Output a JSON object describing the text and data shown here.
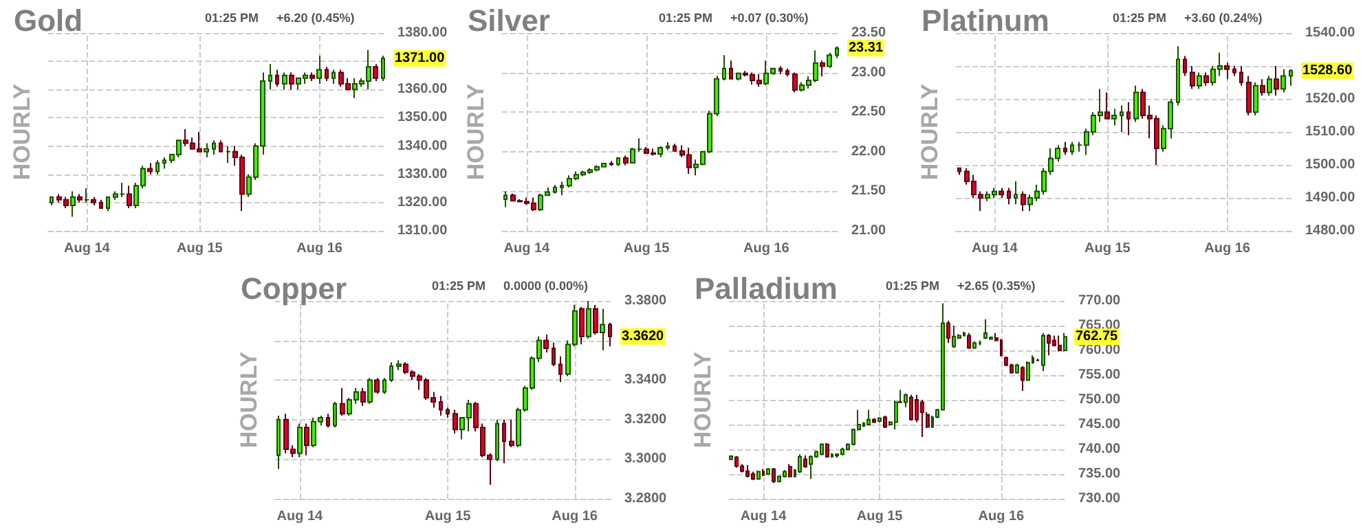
{
  "chart_data": [
    {
      "type": "candlestick",
      "title": "Gold",
      "ylabel": "HOURLY",
      "grid": true,
      "annotations": [
        "01:25 PM",
        "+6.20 (0.45%)",
        "1371.00"
      ],
      "categories": [
        null,
        null,
        null,
        null,
        null,
        "Aug 14",
        null,
        null,
        null,
        null,
        null,
        null,
        null,
        null,
        null,
        null,
        null,
        null,
        null,
        null,
        null,
        "Aug 15",
        null,
        null,
        null,
        null,
        null,
        null,
        null,
        null,
        null,
        null,
        null,
        null,
        null,
        null,
        null,
        null,
        "Aug 16",
        null,
        null,
        null,
        null,
        null,
        null,
        null,
        null,
        null
      ],
      "ylim": [
        1310,
        1380
      ],
      "yticks": [
        {
          "value": 1310,
          "label": "1310.00"
        },
        {
          "value": 1320,
          "label": "1320.00"
        },
        {
          "value": 1330,
          "label": "1330.00"
        },
        {
          "value": 1340,
          "label": "1340.00"
        },
        {
          "value": 1350,
          "label": "1350.00"
        },
        {
          "value": 1360,
          "label": "1360.00"
        },
        {
          "value": 1370,
          "label": null
        },
        {
          "value": 1380,
          "label": "1380.00"
        }
      ],
      "ohlc": [
        [
          1320,
          1322,
          1319,
          1322
        ],
        [
          1322,
          1323,
          1320,
          1321
        ],
        [
          1321,
          1322,
          1318,
          1319
        ],
        [
          1319,
          1324,
          1315,
          1322
        ],
        [
          1322,
          1323,
          1320,
          1321
        ],
        [
          1321,
          1325,
          1320,
          1321
        ],
        [
          1321,
          1322,
          1319,
          1320
        ],
        [
          1320,
          1321,
          1318,
          1318
        ],
        [
          1318,
          1322,
          1317,
          1322
        ],
        [
          1322,
          1324,
          1321,
          1323
        ],
        [
          1323,
          1327,
          1322,
          1323
        ],
        [
          1323,
          1326,
          1318,
          1319
        ],
        [
          1319,
          1327,
          1318,
          1326
        ],
        [
          1326,
          1333,
          1325,
          1332
        ],
        [
          1332,
          1334,
          1330,
          1331
        ],
        [
          1331,
          1335,
          1330,
          1334
        ],
        [
          1334,
          1336,
          1332,
          1335
        ],
        [
          1335,
          1337,
          1334,
          1337
        ],
        [
          1337,
          1342,
          1336,
          1342
        ],
        [
          1342,
          1346,
          1340,
          1341
        ],
        [
          1341,
          1343,
          1339,
          1339
        ],
        [
          1339,
          1345,
          1338,
          1338
        ],
        [
          1338,
          1341,
          1336,
          1339
        ],
        [
          1339,
          1342,
          1337,
          1341
        ],
        [
          1341,
          1342,
          1338,
          1338
        ],
        [
          1338,
          1340,
          1334,
          1338
        ],
        [
          1338,
          1340,
          1333,
          1336
        ],
        [
          1336,
          1337,
          1317,
          1323
        ],
        [
          1323,
          1330,
          1322,
          1329
        ],
        [
          1329,
          1341,
          1328,
          1340
        ],
        [
          1340,
          1366,
          1337,
          1363
        ],
        [
          1363,
          1369,
          1360,
          1365
        ],
        [
          1365,
          1367,
          1361,
          1362
        ],
        [
          1362,
          1366,
          1360,
          1365
        ],
        [
          1365,
          1366,
          1360,
          1362
        ],
        [
          1362,
          1364,
          1360,
          1364
        ],
        [
          1364,
          1366,
          1362,
          1365
        ],
        [
          1365,
          1366,
          1363,
          1364
        ],
        [
          1364,
          1372,
          1362,
          1367
        ],
        [
          1367,
          1368,
          1363,
          1364
        ],
        [
          1364,
          1367,
          1362,
          1366
        ],
        [
          1366,
          1367,
          1361,
          1362
        ],
        [
          1362,
          1364,
          1360,
          1360
        ],
        [
          1360,
          1364,
          1357,
          1362
        ],
        [
          1362,
          1364,
          1361,
          1363
        ],
        [
          1363,
          1374,
          1360,
          1368
        ],
        [
          1368,
          1369,
          1363,
          1364
        ],
        [
          1364,
          1372,
          1363,
          1371
        ]
      ]
    },
    {
      "type": "candlestick",
      "title": "Silver",
      "ylabel": "HOURLY",
      "grid": true,
      "annotations": [
        "01:25 PM",
        "+0.07 (0.30%)",
        "23.31"
      ],
      "categories": [
        null,
        null,
        null,
        "Aug 14",
        null,
        null,
        null,
        null,
        null,
        null,
        null,
        null,
        null,
        null,
        null,
        null,
        null,
        null,
        null,
        null,
        "Aug 15",
        null,
        null,
        null,
        null,
        null,
        null,
        null,
        null,
        null,
        null,
        null,
        null,
        null,
        null,
        null,
        null,
        "Aug 16",
        null,
        null,
        null,
        null,
        null,
        null,
        null,
        null,
        null,
        null
      ],
      "ylim": [
        21,
        23.5
      ],
      "yticks": [
        {
          "value": 21,
          "label": "21.00"
        },
        {
          "value": 21.5,
          "label": "21.50"
        },
        {
          "value": 22,
          "label": "22.00"
        },
        {
          "value": 22.5,
          "label": "22.50"
        },
        {
          "value": 23,
          "label": "23.00"
        },
        {
          "value": 23.5,
          "label": "23.50"
        }
      ],
      "ohlc": [
        [
          21.4,
          21.5,
          21.3,
          21.45
        ],
        [
          21.45,
          21.47,
          21.38,
          21.38
        ],
        [
          21.38,
          21.4,
          21.36,
          21.37
        ],
        [
          21.37,
          21.42,
          21.33,
          21.35
        ],
        [
          21.35,
          21.42,
          21.25,
          21.27
        ],
        [
          21.27,
          21.47,
          21.25,
          21.45
        ],
        [
          21.45,
          21.55,
          21.44,
          21.49
        ],
        [
          21.49,
          21.58,
          21.47,
          21.55
        ],
        [
          21.55,
          21.62,
          21.45,
          21.57
        ],
        [
          21.57,
          21.7,
          21.55,
          21.66
        ],
        [
          21.66,
          21.75,
          21.64,
          21.71
        ],
        [
          21.71,
          21.76,
          21.69,
          21.74
        ],
        [
          21.74,
          21.79,
          21.72,
          21.77
        ],
        [
          21.77,
          21.83,
          21.75,
          21.81
        ],
        [
          21.81,
          21.86,
          21.8,
          21.85
        ],
        [
          21.85,
          21.88,
          21.82,
          21.84
        ],
        [
          21.84,
          21.92,
          21.82,
          21.92
        ],
        [
          21.92,
          21.95,
          21.83,
          21.86
        ],
        [
          21.86,
          22.05,
          21.85,
          22.03
        ],
        [
          22.03,
          22.17,
          22.0,
          22.03
        ],
        [
          22.03,
          22.06,
          21.97,
          21.98
        ],
        [
          21.98,
          22.04,
          21.95,
          21.97
        ],
        [
          21.97,
          22.07,
          21.93,
          22.05
        ],
        [
          22.05,
          22.12,
          22.02,
          22.07
        ],
        [
          22.07,
          22.1,
          22.0,
          22.01
        ],
        [
          22.01,
          22.08,
          21.93,
          21.96
        ],
        [
          21.96,
          22.05,
          21.72,
          21.8
        ],
        [
          21.8,
          21.9,
          21.7,
          21.84
        ],
        [
          21.84,
          22.01,
          21.83,
          22.0
        ],
        [
          22.0,
          22.52,
          21.98,
          22.48
        ],
        [
          22.48,
          22.96,
          22.45,
          22.92
        ],
        [
          22.92,
          23.22,
          22.9,
          23.05
        ],
        [
          23.05,
          23.15,
          22.92,
          22.92
        ],
        [
          22.92,
          23.0,
          22.9,
          22.99
        ],
        [
          22.99,
          23.02,
          22.95,
          22.97
        ],
        [
          22.97,
          23.0,
          22.85,
          22.9
        ],
        [
          22.9,
          22.98,
          22.82,
          22.86
        ],
        [
          22.86,
          23.15,
          22.84,
          22.99
        ],
        [
          22.99,
          23.05,
          22.97,
          23.05
        ],
        [
          23.05,
          23.08,
          22.98,
          23.02
        ],
        [
          23.02,
          23.05,
          22.95,
          22.98
        ],
        [
          22.98,
          23.0,
          22.75,
          22.78
        ],
        [
          22.78,
          22.88,
          22.76,
          22.84
        ],
        [
          22.84,
          22.95,
          22.8,
          22.9
        ],
        [
          22.9,
          23.28,
          22.88,
          23.12
        ],
        [
          23.12,
          23.15,
          22.95,
          23.08
        ],
        [
          23.08,
          23.25,
          23.06,
          23.22
        ],
        [
          23.22,
          23.33,
          23.18,
          23.31
        ]
      ]
    },
    {
      "type": "candlestick",
      "title": "Platinum",
      "ylabel": "HOURLY",
      "grid": true,
      "annotations": [
        "01:25 PM",
        "+3.60 (0.24%)",
        "1528.60"
      ],
      "categories": [
        null,
        null,
        null,
        null,
        null,
        "Aug 14",
        null,
        null,
        null,
        null,
        null,
        null,
        null,
        null,
        null,
        null,
        null,
        null,
        null,
        null,
        null,
        "Aug 15",
        null,
        null,
        null,
        null,
        null,
        null,
        null,
        null,
        null,
        null,
        null,
        null,
        null,
        null,
        null,
        null,
        "Aug 16",
        null,
        null,
        null,
        null,
        null,
        null,
        null,
        null,
        null
      ],
      "ylim": [
        1480,
        1540
      ],
      "yticks": [
        {
          "value": 1480,
          "label": "1480.00"
        },
        {
          "value": 1490,
          "label": "1490.00"
        },
        {
          "value": 1500,
          "label": "1500.00"
        },
        {
          "value": 1510,
          "label": "1510.00"
        },
        {
          "value": 1520,
          "label": "1520.00"
        },
        {
          "value": 1530,
          "label": null
        },
        {
          "value": 1540,
          "label": "1540.00"
        }
      ],
      "ohlc": [
        [
          1499,
          1499,
          1497,
          1498
        ],
        [
          1498,
          1499,
          1494,
          1495
        ],
        [
          1495,
          1497,
          1490,
          1491
        ],
        [
          1491,
          1492,
          1486,
          1490
        ],
        [
          1490,
          1492,
          1489,
          1491
        ],
        [
          1491,
          1493,
          1490,
          1492
        ],
        [
          1492,
          1493,
          1490,
          1491
        ],
        [
          1492,
          1493,
          1488,
          1490
        ],
        [
          1490,
          1495,
          1488,
          1491
        ],
        [
          1491,
          1492,
          1486,
          1488
        ],
        [
          1488,
          1491,
          1486,
          1490
        ],
        [
          1490,
          1494,
          1489,
          1492
        ],
        [
          1492,
          1499,
          1491,
          1498
        ],
        [
          1498,
          1505,
          1497,
          1502
        ],
        [
          1502,
          1506,
          1501,
          1505
        ],
        [
          1505,
          1507,
          1503,
          1504
        ],
        [
          1504,
          1507,
          1503,
          1506
        ],
        [
          1506,
          1507,
          1504,
          1506
        ],
        [
          1506,
          1511,
          1503,
          1510
        ],
        [
          1510,
          1516,
          1509,
          1515
        ],
        [
          1515,
          1523,
          1513,
          1516
        ],
        [
          1516,
          1522,
          1514,
          1514
        ],
        [
          1514,
          1517,
          1512,
          1515
        ],
        [
          1515,
          1518,
          1510,
          1516
        ],
        [
          1516,
          1519,
          1509,
          1514
        ],
        [
          1514,
          1524,
          1513,
          1522
        ],
        [
          1522,
          1523,
          1514,
          1515
        ],
        [
          1515,
          1518,
          1508,
          1514
        ],
        [
          1514,
          1515,
          1500,
          1505
        ],
        [
          1505,
          1512,
          1504,
          1511
        ],
        [
          1511,
          1520,
          1508,
          1519
        ],
        [
          1519,
          1536,
          1518,
          1532
        ],
        [
          1532,
          1533,
          1527,
          1528
        ],
        [
          1528,
          1530,
          1523,
          1524
        ],
        [
          1524,
          1528,
          1523,
          1527
        ],
        [
          1527,
          1528,
          1524,
          1525
        ],
        [
          1525,
          1530,
          1524,
          1529
        ],
        [
          1529,
          1534,
          1527,
          1530
        ],
        [
          1530,
          1531,
          1526,
          1529
        ],
        [
          1529,
          1530,
          1527,
          1528
        ],
        [
          1528,
          1530,
          1524,
          1525
        ],
        [
          1525,
          1527,
          1515,
          1516
        ],
        [
          1516,
          1525,
          1515,
          1524
        ],
        [
          1524,
          1526,
          1521,
          1522
        ],
        [
          1522,
          1527,
          1521,
          1526
        ],
        [
          1526,
          1530,
          1521,
          1523
        ],
        [
          1523,
          1529,
          1522,
          1527
        ],
        [
          1527,
          1529,
          1524,
          1528.6
        ]
      ]
    },
    {
      "type": "candlestick",
      "title": "Copper",
      "ylabel": "HOURLY",
      "grid": true,
      "annotations": [
        "01:25 PM",
        "0.0000 (0.00%)",
        "3.3620"
      ],
      "categories": [
        null,
        null,
        null,
        "Aug 14",
        null,
        null,
        null,
        null,
        null,
        null,
        null,
        null,
        null,
        null,
        null,
        null,
        null,
        null,
        null,
        null,
        null,
        null,
        null,
        null,
        "Aug 15",
        null,
        null,
        null,
        null,
        null,
        null,
        null,
        null,
        null,
        null,
        null,
        null,
        null,
        null,
        null,
        null,
        null,
        "Aug 16",
        null,
        null,
        null,
        null,
        null
      ],
      "ylim": [
        3.28,
        3.38
      ],
      "yticks": [
        {
          "value": 3.28,
          "label": "3.2800"
        },
        {
          "value": 3.3,
          "label": "3.3000"
        },
        {
          "value": 3.32,
          "label": "3.3200"
        },
        {
          "value": 3.34,
          "label": "3.3400"
        },
        {
          "value": 3.36,
          "label": null
        },
        {
          "value": 3.38,
          "label": "3.3800"
        }
      ],
      "ohlc": [
        [
          3.302,
          3.322,
          3.295,
          3.32
        ],
        [
          3.32,
          3.323,
          3.303,
          3.305
        ],
        [
          3.305,
          3.307,
          3.301,
          3.303
        ],
        [
          3.303,
          3.318,
          3.301,
          3.316
        ],
        [
          3.316,
          3.318,
          3.302,
          3.307
        ],
        [
          3.307,
          3.321,
          3.306,
          3.319
        ],
        [
          3.319,
          3.322,
          3.317,
          3.321
        ],
        [
          3.321,
          3.323,
          3.316,
          3.317
        ],
        [
          3.317,
          3.329,
          3.316,
          3.328
        ],
        [
          3.328,
          3.336,
          3.322,
          3.323
        ],
        [
          3.323,
          3.331,
          3.322,
          3.33
        ],
        [
          3.33,
          3.336,
          3.328,
          3.334
        ],
        [
          3.334,
          3.336,
          3.327,
          3.329
        ],
        [
          3.329,
          3.341,
          3.328,
          3.34
        ],
        [
          3.34,
          3.341,
          3.333,
          3.334
        ],
        [
          3.334,
          3.341,
          3.333,
          3.34
        ],
        [
          3.34,
          3.349,
          3.339,
          3.347
        ],
        [
          3.347,
          3.35,
          3.345,
          3.348
        ],
        [
          3.348,
          3.349,
          3.343,
          3.344
        ],
        [
          3.344,
          3.345,
          3.34,
          3.342
        ],
        [
          3.342,
          3.343,
          3.335,
          3.34
        ],
        [
          3.34,
          3.341,
          3.33,
          3.331
        ],
        [
          3.331,
          3.334,
          3.326,
          3.329
        ],
        [
          3.329,
          3.332,
          3.322,
          3.325
        ],
        [
          3.325,
          3.326,
          3.321,
          3.323
        ],
        [
          3.323,
          3.325,
          3.313,
          3.315
        ],
        [
          3.315,
          3.321,
          3.31,
          3.321
        ],
        [
          3.321,
          3.33,
          3.314,
          3.328
        ],
        [
          3.328,
          3.329,
          3.314,
          3.316
        ],
        [
          3.316,
          3.318,
          3.301,
          3.302
        ],
        [
          3.302,
          3.303,
          3.287,
          3.3
        ],
        [
          3.3,
          3.32,
          3.299,
          3.318
        ],
        [
          3.318,
          3.32,
          3.298,
          3.309
        ],
        [
          3.309,
          3.32,
          3.306,
          3.307
        ],
        [
          3.307,
          3.326,
          3.306,
          3.325
        ],
        [
          3.325,
          3.337,
          3.324,
          3.336
        ],
        [
          3.336,
          3.352,
          3.335,
          3.351
        ],
        [
          3.351,
          3.362,
          3.349,
          3.36
        ],
        [
          3.36,
          3.363,
          3.354,
          3.356
        ],
        [
          3.356,
          3.359,
          3.347,
          3.348
        ],
        [
          3.348,
          3.352,
          3.339,
          3.343
        ],
        [
          3.343,
          3.36,
          3.342,
          3.358
        ],
        [
          3.358,
          3.378,
          3.357,
          3.375
        ],
        [
          3.376,
          3.377,
          3.358,
          3.362
        ],
        [
          3.362,
          3.38,
          3.361,
          3.376
        ],
        [
          3.376,
          3.378,
          3.363,
          3.364
        ],
        [
          3.364,
          3.376,
          3.355,
          3.368
        ],
        [
          3.368,
          3.369,
          3.357,
          3.362
        ]
      ]
    },
    {
      "type": "candlestick",
      "title": "Palladium",
      "ylabel": "HOURLY",
      "grid": true,
      "annotations": [
        "01:25 PM",
        "+2.65 (0.35%)",
        "762.75"
      ],
      "categories": [
        null,
        null,
        null,
        null,
        null,
        null,
        "Aug 14",
        null,
        null,
        null,
        null,
        null,
        null,
        null,
        null,
        null,
        null,
        null,
        null,
        null,
        null,
        null,
        null,
        null,
        null,
        null,
        null,
        null,
        "Aug 15",
        null,
        null,
        null,
        null,
        null,
        null,
        null,
        null,
        null,
        null,
        null,
        null,
        null,
        null,
        null,
        null,
        null,
        null,
        null,
        null,
        null,
        null,
        "Aug 16",
        null,
        null,
        null,
        null,
        null,
        null,
        null,
        null,
        null,
        null,
        null,
        null
      ],
      "ylim": [
        730,
        770
      ],
      "yticks": [
        {
          "value": 730,
          "label": "730.00"
        },
        {
          "value": 735,
          "label": "735.00"
        },
        {
          "value": 740,
          "label": "740.00"
        },
        {
          "value": 745,
          "label": "745.00"
        },
        {
          "value": 750,
          "label": "750.00"
        },
        {
          "value": 755,
          "label": "755.00"
        },
        {
          "value": 760,
          "label": "760.00"
        },
        {
          "value": 765,
          "label": "765.00"
        },
        {
          "value": 770,
          "label": "770.00"
        }
      ],
      "ohlc": [
        [
          738.0,
          738.8,
          737.8,
          738.6
        ],
        [
          738.4,
          738.6,
          736.3,
          736.6
        ],
        [
          736.6,
          737.0,
          735.3,
          735.6
        ],
        [
          735.6,
          736.8,
          734.3,
          734.6
        ],
        [
          735.0,
          735.5,
          733.8,
          734.0
        ],
        [
          734.0,
          735.7,
          733.9,
          735.5
        ],
        [
          735.5,
          736.0,
          734.6,
          734.8
        ],
        [
          735.0,
          736.2,
          734.8,
          736.0
        ],
        [
          736.0,
          736.2,
          733.2,
          733.5
        ],
        [
          733.5,
          734.7,
          733.3,
          734.5
        ],
        [
          734.5,
          735.8,
          734.3,
          735.5
        ],
        [
          736.5,
          737.0,
          734.3,
          734.5
        ],
        [
          734.5,
          736.0,
          734.3,
          735.8
        ],
        [
          735.5,
          739.0,
          735.2,
          738.5
        ],
        [
          738.0,
          738.8,
          736.3,
          736.5
        ],
        [
          737.0,
          738.8,
          734.0,
          738.5
        ],
        [
          738.5,
          739.7,
          738.3,
          739.5
        ],
        [
          739.0,
          741.2,
          738.8,
          741.0
        ],
        [
          741.0,
          741.3,
          738.3,
          738.5
        ],
        [
          738.5,
          739.2,
          738.3,
          739.0
        ],
        [
          738.7,
          739.2,
          738.3,
          739.0
        ],
        [
          739.0,
          740.3,
          738.8,
          740.0
        ],
        [
          740.0,
          741.2,
          739.8,
          741.0
        ],
        [
          741.0,
          744.2,
          740.8,
          744.0
        ],
        [
          744.0,
          748.0,
          743.8,
          745.0
        ],
        [
          744.7,
          745.5,
          744.5,
          745.3
        ],
        [
          745.0,
          748.0,
          744.8,
          746.0
        ],
        [
          746.0,
          746.3,
          745.3,
          745.5
        ],
        [
          745.7,
          746.5,
          745.5,
          746.3
        ],
        [
          746.5,
          746.8,
          744.3,
          744.5
        ],
        [
          745.0,
          745.7,
          744.8,
          745.5
        ],
        [
          745.5,
          749.8,
          744.0,
          749.5
        ],
        [
          749.5,
          752.0,
          749.3,
          749.6
        ],
        [
          749.5,
          751.3,
          748.5,
          751.0
        ],
        [
          750.5,
          751.0,
          745.8,
          746.0
        ],
        [
          750.0,
          751.0,
          745.5,
          746.0
        ],
        [
          749.5,
          750.0,
          742.5,
          747.5
        ],
        [
          747.0,
          747.5,
          744.3,
          744.5
        ],
        [
          744.5,
          746.8,
          744.3,
          746.5
        ],
        [
          746.5,
          748.2,
          746.3,
          748.0
        ],
        [
          748.0,
          769.5,
          747.8,
          765.5
        ],
        [
          765.5,
          766.0,
          761.5,
          762.5
        ],
        [
          760.8,
          765.0,
          760.5,
          762.8
        ],
        [
          762.5,
          763.3,
          762.3,
          763.0
        ],
        [
          763.0,
          763.8,
          762.8,
          763.5
        ],
        [
          763.0,
          763.5,
          760.3,
          760.5
        ],
        [
          760.5,
          761.8,
          760.3,
          761.5
        ],
        [
          761.5,
          762.0,
          761.0,
          761.5
        ],
        [
          762.5,
          766.3,
          762.3,
          763.5
        ],
        [
          762.3,
          762.8,
          762.2,
          762.6
        ],
        [
          762.5,
          763.5,
          761.8,
          762.0
        ],
        [
          762.0,
          762.3,
          758.8,
          759.0
        ],
        [
          758.5,
          758.8,
          756.8,
          757.0
        ],
        [
          757.0,
          757.3,
          755.3,
          755.5
        ],
        [
          755.5,
          757.3,
          755.3,
          757.0
        ],
        [
          756.5,
          756.8,
          751.8,
          754.0
        ],
        [
          754.0,
          757.8,
          753.8,
          757.5
        ],
        [
          757.5,
          759.0,
          757.3,
          758.5
        ],
        [
          758.0,
          758.3,
          757.8,
          758.0
        ],
        [
          757.0,
          763.5,
          755.8,
          763.0
        ],
        [
          763.0,
          763.3,
          759.0,
          761.5
        ],
        [
          762.0,
          763.0,
          760.8,
          761.0
        ],
        [
          761.0,
          763.0,
          759.8,
          760.0
        ],
        [
          760.0,
          763.5,
          759.8,
          762.75
        ]
      ]
    }
  ]
}
